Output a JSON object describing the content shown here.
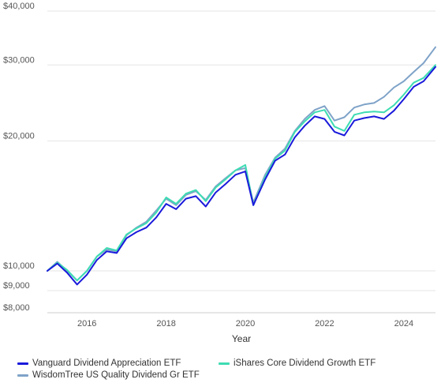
{
  "chart_data": {
    "type": "line",
    "xlabel": "Year",
    "ylabel": "",
    "y_scale": "log",
    "ylim": [
      8000,
      40000
    ],
    "xlim": [
      2015.0,
      2024.8
    ],
    "y_ticks": [
      8000,
      9000,
      10000,
      20000,
      30000,
      40000
    ],
    "y_tick_labels": [
      "$8,000",
      "$9,000",
      "$10,000",
      "$20,000",
      "$30,000",
      "$40,000"
    ],
    "x_ticks": [
      2016,
      2018,
      2020,
      2022,
      2024
    ],
    "x_tick_labels": [
      "2016",
      "2018",
      "2020",
      "2022",
      "2024"
    ],
    "grid": "horizontal",
    "legend_position": "bottom-left",
    "x": [
      2015.0,
      2015.25,
      2015.5,
      2015.75,
      2016.0,
      2016.25,
      2016.5,
      2016.75,
      2017.0,
      2017.25,
      2017.5,
      2017.75,
      2018.0,
      2018.25,
      2018.5,
      2018.75,
      2019.0,
      2019.25,
      2019.5,
      2019.75,
      2020.0,
      2020.2,
      2020.5,
      2020.75,
      2021.0,
      2021.25,
      2021.5,
      2021.75,
      2022.0,
      2022.25,
      2022.5,
      2022.75,
      2023.0,
      2023.25,
      2023.5,
      2023.75,
      2024.0,
      2024.25,
      2024.5,
      2024.8
    ],
    "series": [
      {
        "name": "Vanguard Dividend Appreciation ETF",
        "color": "#1a1adb",
        "values": [
          10000,
          10400,
          9900,
          9300,
          9800,
          10600,
          11100,
          11000,
          11900,
          12300,
          12600,
          13300,
          14300,
          13900,
          14700,
          14900,
          14100,
          15200,
          15900,
          16700,
          17000,
          14200,
          16300,
          18000,
          18600,
          20400,
          21700,
          22800,
          22500,
          21000,
          20600,
          22300,
          22600,
          22800,
          22500,
          23500,
          25000,
          26700,
          27500,
          29700
        ]
      },
      {
        "name": "iShares Core Dividend Growth ETF",
        "color": "#3edcb3",
        "values": [
          10000,
          10450,
          10050,
          9500,
          10000,
          10800,
          11300,
          11150,
          12150,
          12550,
          12900,
          13650,
          14800,
          14300,
          15100,
          15400,
          14500,
          15600,
          16300,
          17100,
          17600,
          14200,
          16500,
          18200,
          19000,
          21000,
          22200,
          23300,
          23600,
          21600,
          21100,
          23000,
          23300,
          23400,
          23300,
          24200,
          25600,
          27300,
          28000,
          30000
        ]
      },
      {
        "name": "WisdomTree US Quality Dividend Gr ETF",
        "color": "#7fa3c8",
        "values": [
          10000,
          10500,
          10000,
          9500,
          10000,
          10800,
          11200,
          11100,
          12100,
          12600,
          13000,
          13800,
          14700,
          14200,
          15000,
          15300,
          14600,
          15700,
          16400,
          17100,
          17300,
          14400,
          16700,
          18300,
          19200,
          21100,
          22500,
          23600,
          24100,
          22300,
          22700,
          23900,
          24300,
          24500,
          25300,
          26600,
          27500,
          28900,
          30300,
          33000
        ]
      }
    ]
  }
}
